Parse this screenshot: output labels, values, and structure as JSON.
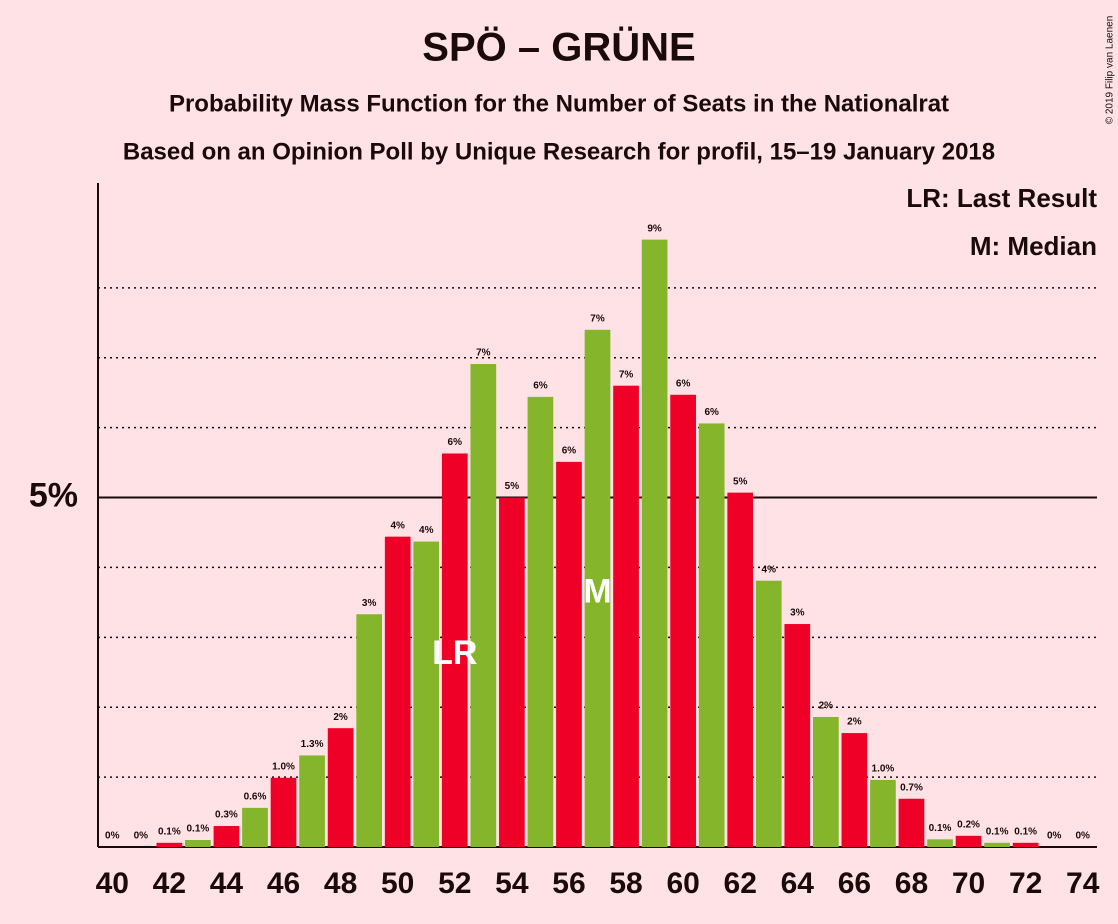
{
  "chart_data": {
    "type": "bar",
    "title": "SPÖ – GRÜNE",
    "subtitle": "Probability Mass Function for the Number of Seats in the Nationalrat",
    "subtitle2": "Based on an Opinion Poll by Unique Research for profil, 15–19 January 2018",
    "copyright": "© 2019 Filip van Laenen",
    "legend": [
      "LR: Last Result",
      "M: Median"
    ],
    "x": [
      40,
      41,
      42,
      43,
      44,
      45,
      46,
      47,
      48,
      49,
      50,
      51,
      52,
      53,
      54,
      55,
      56,
      57,
      58,
      59,
      60,
      61,
      62,
      63,
      64,
      65,
      66,
      67,
      68,
      69,
      70,
      71,
      72,
      73,
      74
    ],
    "values": [
      0,
      0,
      0.06,
      0.1,
      0.3,
      0.56,
      0.99,
      1.31,
      1.7,
      3.33,
      4.44,
      4.37,
      5.63,
      6.91,
      5.0,
      6.44,
      5.51,
      7.4,
      6.6,
      8.69,
      6.47,
      6.06,
      5.07,
      3.81,
      3.19,
      1.86,
      1.63,
      0.96,
      0.69,
      0.11,
      0.16,
      0.06,
      0.06,
      0,
      0
    ],
    "value_labels": [
      "0%",
      "0%",
      "0.1%",
      "0.1%",
      "0.3%",
      "0.6%",
      "1.0%",
      "1.3%",
      "2%",
      "3%",
      "4%",
      "4%",
      "6%",
      "7%",
      "5%",
      "6%",
      "6%",
      "7%",
      "7%",
      "9%",
      "6%",
      "6%",
      "5%",
      "4%",
      "3%",
      "2%",
      "2%",
      "1.0%",
      "0.7%",
      "0.1%",
      "0.2%",
      "0.1%",
      "0.1%",
      "0%",
      "0%"
    ],
    "colors": [
      "#ef0027",
      "#84b52a",
      "#ef0027",
      "#84b52a",
      "#ef0027",
      "#84b52a",
      "#ef0027",
      "#84b52a",
      "#ef0027",
      "#84b52a",
      "#ef0027",
      "#84b52a",
      "#ef0027",
      "#84b52a",
      "#ef0027",
      "#84b52a",
      "#ef0027",
      "#84b52a",
      "#ef0027",
      "#84b52a",
      "#ef0027",
      "#84b52a",
      "#ef0027",
      "#84b52a",
      "#ef0027",
      "#84b52a",
      "#ef0027",
      "#84b52a",
      "#ef0027",
      "#84b52a",
      "#ef0027",
      "#84b52a",
      "#ef0027",
      "#84b52a",
      "#ef0027"
    ],
    "xlim": [
      39.5,
      74.5
    ],
    "xticks": [
      40,
      42,
      44,
      46,
      48,
      50,
      52,
      54,
      56,
      58,
      60,
      62,
      64,
      66,
      68,
      70,
      72,
      74
    ],
    "ylim": [
      0,
      9.5
    ],
    "yticks": [
      {
        "value": 5,
        "label": "5%"
      }
    ],
    "minor_gridlines": [
      1,
      2,
      3,
      4,
      6,
      7,
      8
    ],
    "annotations": [
      {
        "label": "LR",
        "x": 52
      },
      {
        "label": "M",
        "x": 57
      }
    ]
  }
}
